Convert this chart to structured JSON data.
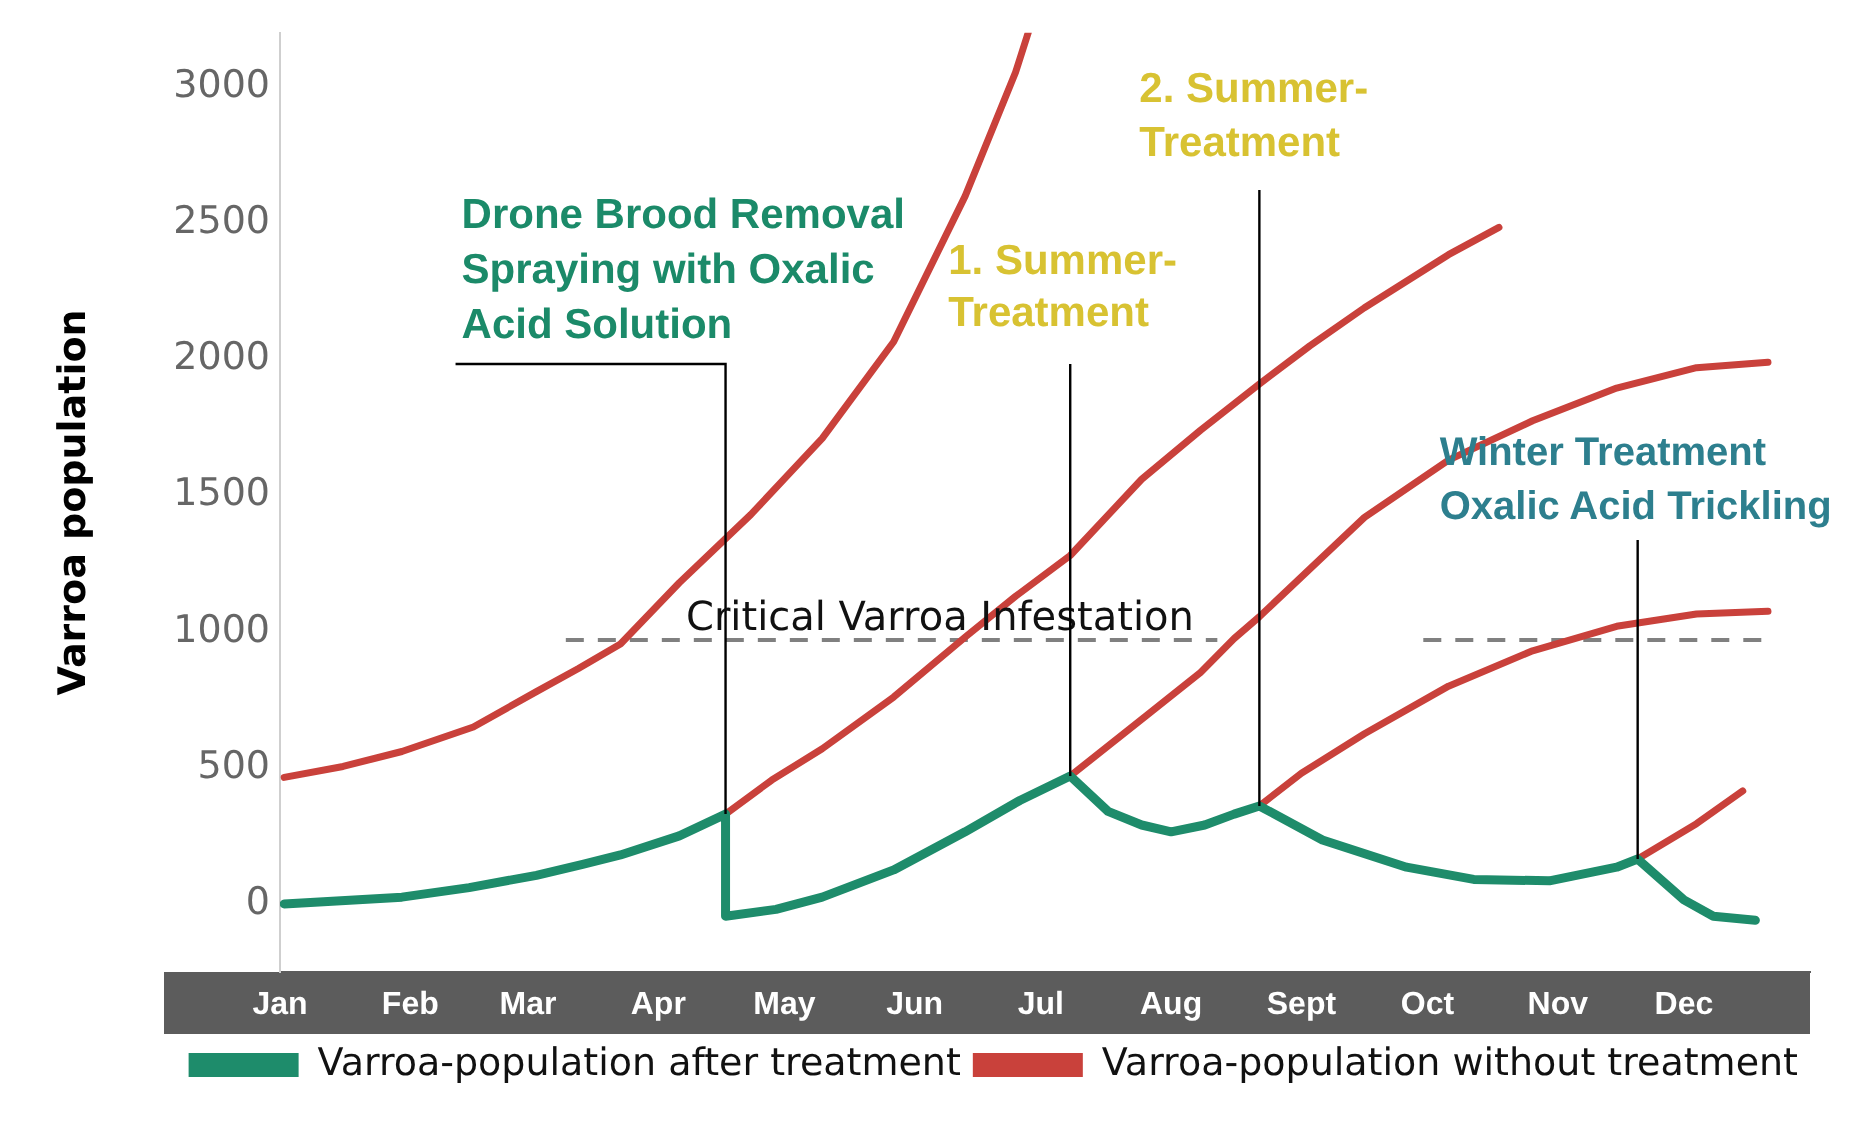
{
  "chart_data": {
    "type": "line",
    "ylabel": "Varroa population",
    "xlim": [
      "--01-01",
      "--12-31"
    ],
    "xticks": [
      {
        "value": "--01-01",
        "label": "Jan"
      },
      {
        "value": "--02-01",
        "label": "Feb"
      },
      {
        "value": "--03-01",
        "label": "Mar"
      },
      {
        "value": "--04-01",
        "label": "Apr"
      },
      {
        "value": "--05-01",
        "label": "May"
      },
      {
        "value": "--06-01",
        "label": "Jun"
      },
      {
        "value": "--07-01",
        "label": "Jul"
      },
      {
        "value": "--08-01",
        "label": "Aug"
      },
      {
        "value": "--09-01",
        "label": "Sept"
      },
      {
        "value": "--10-01",
        "label": "Oct"
      },
      {
        "value": "--11-01",
        "label": "Nov"
      },
      {
        "value": "--12-01",
        "label": "Dec"
      }
    ],
    "ylim": [
      -250,
      3200
    ],
    "yticks": [
      0,
      500,
      1000,
      1500,
      2000,
      2500,
      3000
    ],
    "legend": "bottom",
    "series": [
      {
        "name": "Varroa-population after treatment",
        "color": "#1e8c6b",
        "x": [
          "--01-02",
          "--01-30",
          "--02-15",
          "--03-03",
          "--03-14",
          "--03-23",
          "--04-06",
          "--04-17",
          "--04-17",
          "--04-29",
          "--05-10",
          "--05-27",
          "--06-13",
          "--06-26",
          "--07-08",
          "--07-17",
          "--07-25",
          "--08-01",
          "--08-09",
          "--08-16",
          "--08-22",
          "--09-06",
          "--09-26",
          "--10-12",
          "--10-30",
          "--11-15",
          "--11-20",
          "--12-01",
          "--12-08",
          "--12-18"
        ],
        "values": [
          0,
          25,
          60,
          105,
          145,
          180,
          250,
          330,
          -45,
          -20,
          25,
          125,
          265,
          380,
          470,
          340,
          290,
          265,
          290,
          330,
          360,
          235,
          135,
          90,
          85,
          135,
          165,
          15,
          -45,
          -60
        ]
      },
      {
        "name": "Varroa-population without treatment",
        "color": "#c9413b",
        "x": [
          "--01-02",
          "--01-16",
          "--01-30",
          "--02-16",
          "--03-03",
          "--03-13",
          "--03-23",
          "--04-06",
          "--04-23",
          "--05-10",
          "--05-27",
          "--06-13",
          "--06-25",
          "--06-28"
        ],
        "values": [
          465,
          505,
          560,
          650,
          780,
          865,
          955,
          1180,
          1430,
          1710,
          2065,
          2600,
          3055,
          3200
        ]
      },
      {
        "color": "#c9413b",
        "x": [
          "--04-17",
          "--04-28",
          "--05-10",
          "--05-27",
          "--06-13",
          "--06-25",
          "--07-08",
          "--07-25",
          "--08-08",
          "--08-22",
          "--09-03",
          "--09-16",
          "--10-06",
          "--10-18"
        ],
        "values": [
          330,
          455,
          570,
          760,
          980,
          1130,
          1280,
          1560,
          1740,
          1910,
          2050,
          2190,
          2385,
          2485
        ]
      },
      {
        "color": "#c9413b",
        "x": [
          "--07-08",
          "--07-26",
          "--08-08",
          "--08-16",
          "--08-22",
          "--09-16",
          "--10-06",
          "--10-26",
          "--11-15",
          "--12-04",
          "--12-21"
        ],
        "values": [
          470,
          690,
          850,
          975,
          1055,
          1420,
          1630,
          1775,
          1895,
          1970,
          1990
        ]
      },
      {
        "color": "#c9413b",
        "x": [
          "--08-22",
          "--09-01",
          "--09-16",
          "--10-06",
          "--10-26",
          "--11-15",
          "--12-04",
          "--12-21"
        ],
        "values": [
          360,
          480,
          625,
          800,
          930,
          1020,
          1065,
          1075
        ]
      },
      {
        "color": "#c9413b",
        "x": [
          "--11-20",
          "--12-04",
          "--12-15"
        ],
        "values": [
          165,
          295,
          415
        ]
      },
      {
        "color": "#808080",
        "line_style": "dashed",
        "x": [
          "--03-10",
          "--08-12",
          "--09-07",
          "--09-30",
          "--12-20"
        ],
        "values": [
          970,
          970,
          null,
          970,
          970
        ]
      }
    ],
    "annotations": [
      {
        "text": "Drone Brood Removal Spraying with Oxalic Acid Solution",
        "x": "--04-17",
        "y": 330
      },
      {
        "text": "Critical Varroa Infestation",
        "x": "--06-07",
        "y": 970
      },
      {
        "text": "1. Summer-Treatment",
        "x": "--07-08",
        "y": 470
      },
      {
        "text": "2. Summer-Treatment",
        "x": "--08-22",
        "y": 360
      },
      {
        "text": "Winter Treatment Oxalic Acid Trickling",
        "x": "--11-20",
        "y": 165
      }
    ]
  }
}
